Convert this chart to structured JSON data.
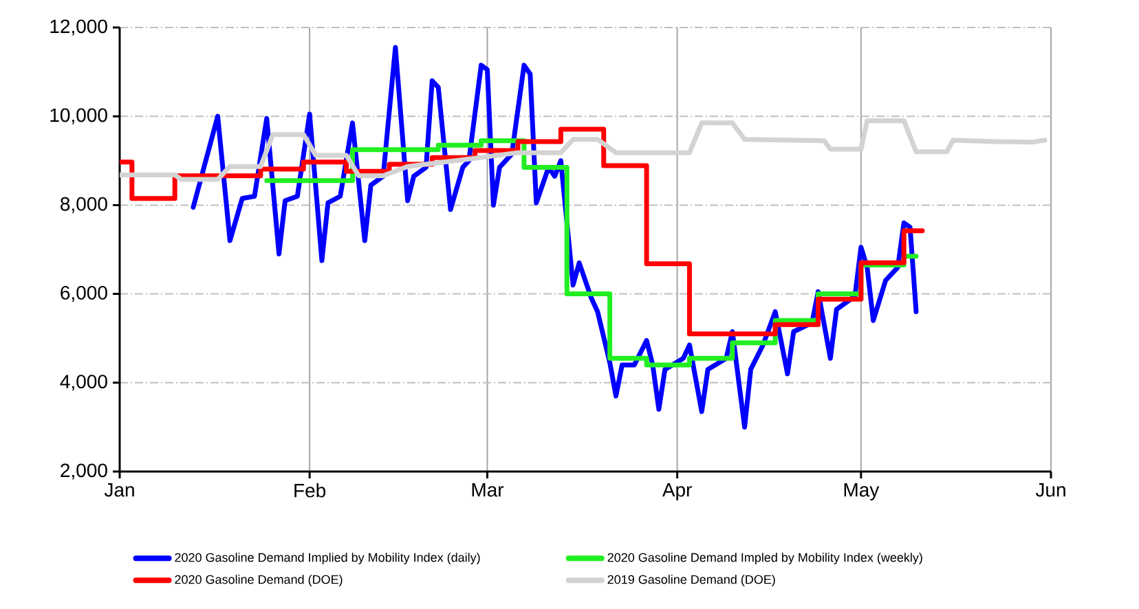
{
  "chart_data": {
    "type": "line",
    "xlim": [
      "2020-01-01",
      "2020-06-01"
    ],
    "xticks": [
      {
        "value": "2020-01-01",
        "label": "Jan"
      },
      {
        "value": "2020-02-01",
        "label": "Feb"
      },
      {
        "value": "2020-03-01",
        "label": "Mar"
      },
      {
        "value": "2020-04-01",
        "label": "Apr"
      },
      {
        "value": "2020-05-01",
        "label": "May"
      },
      {
        "value": "2020-06-01",
        "label": "Jun"
      }
    ],
    "ylim": [
      2000,
      12000
    ],
    "yticks": [
      {
        "value": 2000,
        "label": "2,000"
      },
      {
        "value": 4000,
        "label": "4,000"
      },
      {
        "value": 6000,
        "label": "6,000"
      },
      {
        "value": 8000,
        "label": "8,000"
      },
      {
        "value": 10000,
        "label": "10,000"
      },
      {
        "value": 12000,
        "label": "12,000"
      }
    ],
    "grid": true,
    "legend": "bottom",
    "series": [
      {
        "name": "2020 Gasoline Demand Implied by Mobility Index (daily)",
        "color": "#0000ff",
        "x": [
          "2020-01-13",
          "2020-01-17",
          "2020-01-19",
          "2020-01-21",
          "2020-01-23",
          "2020-01-25",
          "2020-01-27",
          "2020-01-28",
          "2020-01-30",
          "2020-02-01",
          "2020-02-03",
          "2020-02-04",
          "2020-02-06",
          "2020-02-08",
          "2020-02-10",
          "2020-02-11",
          "2020-02-13",
          "2020-02-15",
          "2020-02-17",
          "2020-02-18",
          "2020-02-20",
          "2020-02-21",
          "2020-02-22",
          "2020-02-24",
          "2020-02-26",
          "2020-02-27",
          "2020-02-29",
          "2020-03-01",
          "2020-03-02",
          "2020-03-03",
          "2020-03-05",
          "2020-03-07",
          "2020-03-08",
          "2020-03-09",
          "2020-03-11",
          "2020-03-12",
          "2020-03-13",
          "2020-03-15",
          "2020-03-16",
          "2020-03-18",
          "2020-03-19",
          "2020-03-21",
          "2020-03-22",
          "2020-03-23",
          "2020-03-25",
          "2020-03-27",
          "2020-03-28",
          "2020-03-29",
          "2020-03-30",
          "2020-04-02",
          "2020-04-03",
          "2020-04-05",
          "2020-04-06",
          "2020-04-09",
          "2020-04-10",
          "2020-04-12",
          "2020-04-13",
          "2020-04-15",
          "2020-04-17",
          "2020-04-19",
          "2020-04-20",
          "2020-04-23",
          "2020-04-24",
          "2020-04-26",
          "2020-04-27",
          "2020-04-30",
          "2020-05-01",
          "2020-05-02",
          "2020-05-03",
          "2020-05-05",
          "2020-05-07",
          "2020-05-08",
          "2020-05-09",
          "2020-05-10"
        ],
        "values": [
          7950,
          10000,
          7200,
          8150,
          8200,
          9950,
          6900,
          8100,
          8200,
          10050,
          6750,
          8050,
          8200,
          9850,
          7200,
          8450,
          8650,
          11550,
          8100,
          8650,
          8850,
          10800,
          10650,
          7900,
          8850,
          9000,
          11150,
          11050,
          8000,
          8850,
          9150,
          11150,
          10950,
          8050,
          8850,
          8650,
          9000,
          6200,
          6700,
          5900,
          5600,
          4450,
          3700,
          4400,
          4400,
          4950,
          4400,
          3400,
          4300,
          4550,
          4850,
          3350,
          4300,
          4550,
          5150,
          3000,
          4300,
          4850,
          5600,
          4200,
          5150,
          5350,
          6050,
          4550,
          5650,
          5950,
          7050,
          6600,
          5400,
          6300,
          6600,
          7600,
          7500,
          5600
        ]
      },
      {
        "name": "2020 Gasoline Demand Impled by Mobility Index (weekly)",
        "color": "#22ee22",
        "type": "step",
        "x": [
          "2020-01-25",
          "2020-02-08",
          "2020-02-22",
          "2020-02-29",
          "2020-03-07",
          "2020-03-14",
          "2020-03-21",
          "2020-03-27",
          "2020-04-03",
          "2020-04-10",
          "2020-04-17",
          "2020-04-24",
          "2020-05-01",
          "2020-05-08",
          "2020-05-10"
        ],
        "values": [
          8550,
          9250,
          9350,
          9450,
          8850,
          6000,
          4550,
          4400,
          4550,
          4900,
          5400,
          6000,
          6650,
          6850,
          6850
        ]
      },
      {
        "name": "2020 Gasoline Demand (DOE)",
        "color": "#ff0000",
        "type": "step",
        "x": [
          "2020-01-01",
          "2020-01-03",
          "2020-01-10",
          "2020-01-24",
          "2020-01-31",
          "2020-02-07",
          "2020-02-14",
          "2020-02-21",
          "2020-02-28",
          "2020-03-06",
          "2020-03-13",
          "2020-03-20",
          "2020-03-27",
          "2020-04-03",
          "2020-04-17",
          "2020-04-24",
          "2020-05-01",
          "2020-05-08",
          "2020-05-11"
        ],
        "values": [
          8970,
          8150,
          8660,
          8810,
          8970,
          8760,
          8920,
          9070,
          9230,
          9430,
          9710,
          8890,
          6680,
          5100,
          5310,
          5880,
          6700,
          7420,
          7420
        ]
      },
      {
        "name": "2019 Gasoline Demand (DOE)",
        "color": "#d3d3d3",
        "x": [
          "2020-01-01",
          "2020-01-10",
          "2020-01-11",
          "2020-01-17",
          "2020-01-19",
          "2020-01-24",
          "2020-01-26",
          "2020-01-31",
          "2020-02-02",
          "2020-02-07",
          "2020-02-09",
          "2020-02-13",
          "2020-02-17",
          "2020-02-26",
          "2020-03-06",
          "2020-03-13",
          "2020-03-15",
          "2020-03-19",
          "2020-03-22",
          "2020-04-03",
          "2020-04-05",
          "2020-04-10",
          "2020-04-12",
          "2020-04-25",
          "2020-04-26",
          "2020-05-01",
          "2020-05-02",
          "2020-05-08",
          "2020-05-10",
          "2020-05-15",
          "2020-05-16",
          "2020-05-23",
          "2020-05-29",
          "2020-05-31"
        ],
        "values": [
          8680,
          8680,
          8580,
          8580,
          8870,
          8870,
          9590,
          9590,
          9120,
          9120,
          8660,
          8660,
          8870,
          9020,
          9180,
          9180,
          9480,
          9480,
          9180,
          9180,
          9850,
          9850,
          9480,
          9450,
          9260,
          9260,
          9900,
          9900,
          9200,
          9200,
          9460,
          9430,
          9420,
          9460
        ]
      }
    ]
  }
}
